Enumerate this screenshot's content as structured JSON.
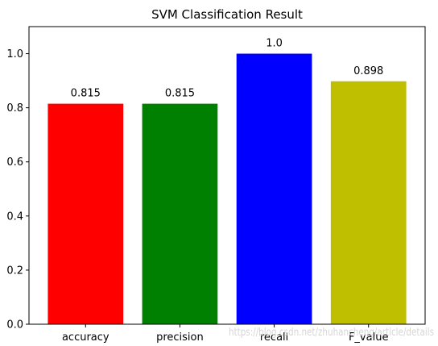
{
  "chart_data": {
    "type": "bar",
    "title": "SVM Classification Result",
    "xlabel": "",
    "ylabel": "",
    "categories": [
      "accuracy",
      "precision",
      "recall",
      "F_value"
    ],
    "values": [
      0.815,
      0.815,
      1.0,
      0.898
    ],
    "data_labels": [
      "0.815",
      "0.815",
      "1.0",
      "0.898"
    ],
    "colors": [
      "#ff0000",
      "#008000",
      "#0000ff",
      "#bfbf00"
    ],
    "ylim": [
      0,
      1.1
    ],
    "yticks": [
      0.0,
      0.2,
      0.4,
      0.6,
      0.8,
      1.0
    ],
    "ytick_labels": [
      "0.0",
      "0.2",
      "0.4",
      "0.6",
      "0.8",
      "1.0"
    ],
    "grid": false,
    "legend": "none"
  },
  "watermark": {
    "text": "https://blog.csdn.net/zhuhancheng/article/details"
  }
}
